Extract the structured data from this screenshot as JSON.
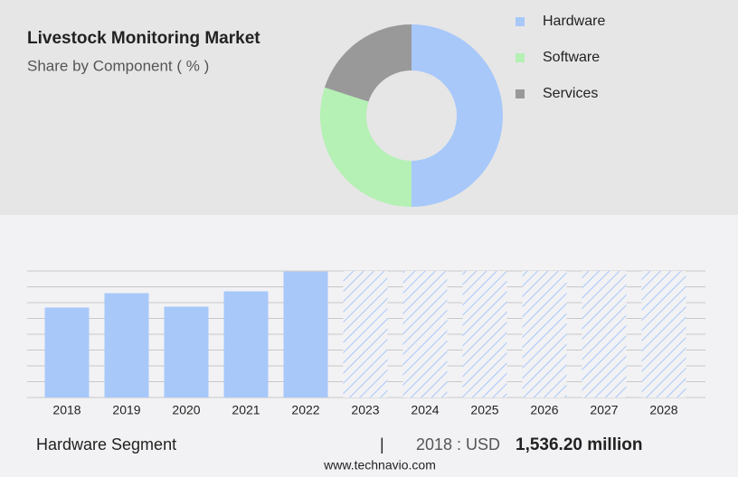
{
  "chart_data": [
    {
      "type": "donut",
      "title": "Livestock Monitoring Market",
      "subtitle": "Share by Component ( % )",
      "categories": [
        "Hardware",
        "Software",
        "Services"
      ],
      "values": [
        50,
        30,
        20
      ],
      "colors": [
        "#a8c8fa",
        "#b5f0b5",
        "#999999"
      ]
    },
    {
      "type": "bar",
      "categories": [
        "2018",
        "2019",
        "2020",
        "2021",
        "2022",
        "2023",
        "2024",
        "2025",
        "2026",
        "2027",
        "2028"
      ],
      "values": [
        1536.2,
        1782,
        1551,
        1813,
        2150,
        null,
        null,
        null,
        null,
        null,
        null
      ],
      "color": "#a8c8fa",
      "ylim": [
        0,
        2160
      ],
      "yticks": [
        0,
        270,
        540,
        810,
        1080,
        1350,
        1620,
        1890,
        2160
      ],
      "grid": true
    }
  ],
  "footer": {
    "segment": "Hardware Segment",
    "year_label": "2018 : USD",
    "value": "1,536.20 million",
    "source": "www.technavio.com"
  }
}
